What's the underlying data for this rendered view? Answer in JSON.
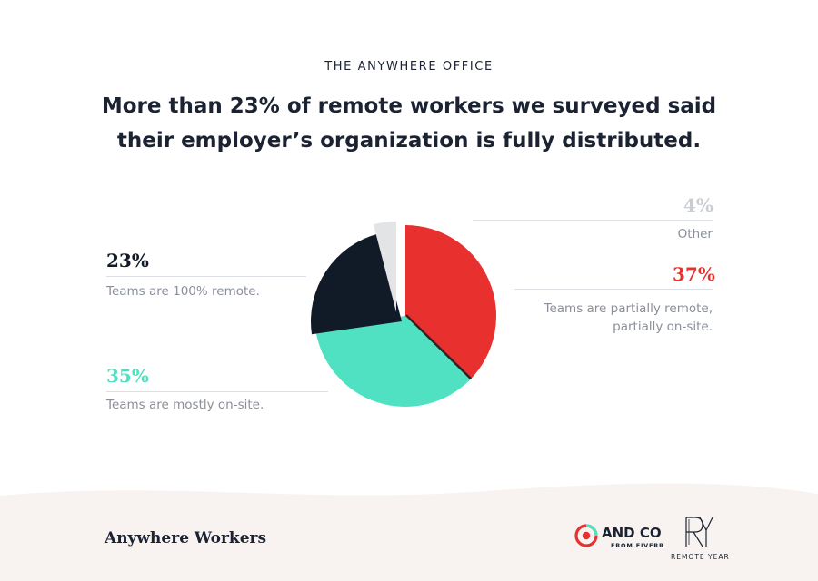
{
  "eyebrow": "THE ANYWHERE OFFICE",
  "headline_line1": "More than 23% of remote workers we surveyed said",
  "headline_line2": "their employer’s organization is fully distributed.",
  "chart_data": {
    "type": "pie",
    "title": "",
    "slices": [
      {
        "value": 37,
        "label": "37%",
        "description_line1": "Teams are partially remote,",
        "description_line2": "partially on-site.",
        "color": "#e8302f"
      },
      {
        "value": 35,
        "label": "35%",
        "description_line1": "Teams are mostly on-site.",
        "description_line2": "",
        "color": "#50e1c2"
      },
      {
        "value": 23,
        "label": "23%",
        "description_line1": "Teams are 100% remote.",
        "description_line2": "",
        "color": "#111a27"
      },
      {
        "value": 4,
        "label": "4%",
        "description_line1": "Other",
        "description_line2": "",
        "color": "#e3e4e6"
      }
    ],
    "start_angle_deg": 0,
    "direction": "clockwise",
    "exploded": [
      "23%",
      "4%"
    ]
  },
  "footer": {
    "brand": "Anywhere Workers",
    "andco_name": "AND CO",
    "andco_sub": "FROM FIVERR",
    "ry_mark": "RY",
    "ry_sub": "REMOTE YEAR",
    "background": "#f8f3f0"
  },
  "colors": {
    "text_dark": "#1b2333",
    "text_muted": "#8a8f99",
    "other_label": "#c9ccd1",
    "andco_red": "#e8302f",
    "andco_teal": "#50e1c2"
  }
}
